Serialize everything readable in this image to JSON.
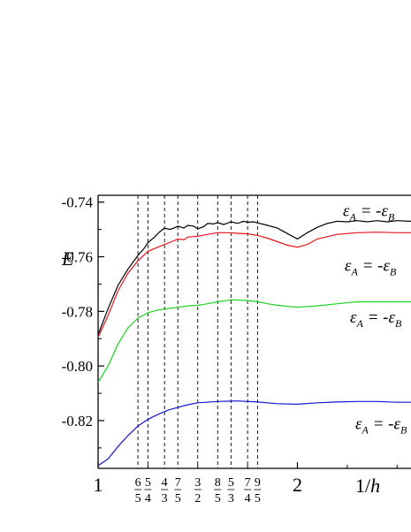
{
  "chart_data": {
    "type": "line",
    "ylabel": "E",
    "xlabel": "1/h",
    "xlim": [
      1,
      2.57
    ],
    "ylim": [
      -0.8375,
      -0.7375
    ],
    "y_ticks": [
      -0.74,
      -0.76,
      -0.78,
      -0.8,
      -0.82
    ],
    "y_tick_labels": [
      "-0.74",
      "-0.76",
      "-0.78",
      "-0.80",
      "-0.82"
    ],
    "x_major_ticks": [
      1,
      2
    ],
    "x_major_labels": [
      "1",
      "2"
    ],
    "x_minor_ticks": [
      1.25,
      1.5,
      1.75,
      2.25,
      2.5
    ],
    "dashed_lines": [
      {
        "x": 1.2,
        "num": "6",
        "den": "5"
      },
      {
        "x": 1.25,
        "num": "5",
        "den": "4"
      },
      {
        "x": 1.3333,
        "num": "4",
        "den": "3"
      },
      {
        "x": 1.4,
        "num": "7",
        "den": "5"
      },
      {
        "x": 1.5,
        "num": "3",
        "den": "2"
      },
      {
        "x": 1.6,
        "num": "8",
        "den": "5"
      },
      {
        "x": 1.6667,
        "num": "5",
        "den": "3"
      },
      {
        "x": 1.75,
        "num": "7",
        "den": "4"
      },
      {
        "x": 1.8,
        "num": "9",
        "den": "5"
      }
    ],
    "grid": false,
    "series": [
      {
        "color": "#000000",
        "label_prefix": "ε",
        "label_sub": "A",
        "label_mid": " = -ε",
        "label_tail": "B",
        "x": [
          1.0,
          1.05,
          1.1,
          1.15,
          1.2,
          1.23,
          1.25,
          1.28,
          1.31,
          1.333,
          1.36,
          1.38,
          1.4,
          1.43,
          1.45,
          1.48,
          1.5,
          1.53,
          1.55,
          1.58,
          1.6,
          1.63,
          1.667,
          1.7,
          1.73,
          1.75,
          1.78,
          1.8,
          1.85,
          1.9,
          1.95,
          2.0,
          2.05,
          2.1,
          2.15,
          2.2,
          2.25,
          2.3,
          2.35,
          2.4,
          2.45,
          2.5,
          2.57
        ],
        "y": [
          -0.7885,
          -0.779,
          -0.7705,
          -0.7645,
          -0.7595,
          -0.757,
          -0.7548,
          -0.753,
          -0.7508,
          -0.7495,
          -0.75,
          -0.7495,
          -0.7488,
          -0.7495,
          -0.7485,
          -0.7488,
          -0.7498,
          -0.749,
          -0.7478,
          -0.748,
          -0.7475,
          -0.7482,
          -0.7472,
          -0.7478,
          -0.747,
          -0.7474,
          -0.7472,
          -0.7476,
          -0.7485,
          -0.7495,
          -0.7515,
          -0.7535,
          -0.7512,
          -0.7492,
          -0.7478,
          -0.747,
          -0.7472,
          -0.7468,
          -0.7472,
          -0.7468,
          -0.7472,
          -0.7468,
          -0.747
        ]
      },
      {
        "color": "#e8141c",
        "label_prefix": "ε",
        "label_sub": "A",
        "label_mid": " = -ε",
        "label_tail": "B",
        "x": [
          1.0,
          1.05,
          1.1,
          1.15,
          1.2,
          1.25,
          1.3,
          1.333,
          1.37,
          1.4,
          1.43,
          1.45,
          1.5,
          1.55,
          1.6,
          1.65,
          1.7,
          1.75,
          1.8,
          1.85,
          1.9,
          1.95,
          2.0,
          2.05,
          2.1,
          2.2,
          2.3,
          2.4,
          2.5,
          2.57
        ],
        "y": [
          -0.7895,
          -0.7815,
          -0.7725,
          -0.766,
          -0.7615,
          -0.758,
          -0.7565,
          -0.7555,
          -0.7545,
          -0.7535,
          -0.7538,
          -0.7528,
          -0.7525,
          -0.7518,
          -0.7512,
          -0.7512,
          -0.7514,
          -0.7516,
          -0.7522,
          -0.7532,
          -0.7545,
          -0.7558,
          -0.7565,
          -0.7555,
          -0.7535,
          -0.7518,
          -0.7512,
          -0.751,
          -0.7512,
          -0.7512
        ]
      },
      {
        "color": "#1ed21e",
        "label_prefix": "ε",
        "label_sub": "A",
        "label_mid": " = -ε",
        "label_tail": "B",
        "x": [
          1.0,
          1.05,
          1.1,
          1.15,
          1.2,
          1.25,
          1.3,
          1.35,
          1.4,
          1.45,
          1.5,
          1.55,
          1.6,
          1.67,
          1.75,
          1.8,
          1.85,
          1.9,
          2.0,
          2.1,
          2.2,
          2.3,
          2.4,
          2.5,
          2.57
        ],
        "y": [
          -0.806,
          -0.8,
          -0.792,
          -0.786,
          -0.7825,
          -0.7805,
          -0.7795,
          -0.779,
          -0.7785,
          -0.778,
          -0.7778,
          -0.7772,
          -0.7765,
          -0.7758,
          -0.776,
          -0.7765,
          -0.7772,
          -0.7778,
          -0.7785,
          -0.778,
          -0.7772,
          -0.7765,
          -0.7765,
          -0.7765,
          -0.7765
        ]
      },
      {
        "color": "#1414d2",
        "label_prefix": "ε",
        "label_sub": "A",
        "label_mid": " = -ε",
        "label_tail": "B",
        "x": [
          1.0,
          1.05,
          1.1,
          1.15,
          1.2,
          1.25,
          1.3,
          1.35,
          1.4,
          1.45,
          1.5,
          1.6,
          1.7,
          1.8,
          1.9,
          2.0,
          2.1,
          2.2,
          2.3,
          2.4,
          2.5,
          2.57
        ],
        "y": [
          -0.8365,
          -0.834,
          -0.8295,
          -0.8255,
          -0.822,
          -0.8195,
          -0.8178,
          -0.8162,
          -0.8152,
          -0.8142,
          -0.8135,
          -0.813,
          -0.8128,
          -0.8132,
          -0.8138,
          -0.814,
          -0.8135,
          -0.8132,
          -0.813,
          -0.813,
          -0.8133,
          -0.8133
        ]
      }
    ]
  }
}
